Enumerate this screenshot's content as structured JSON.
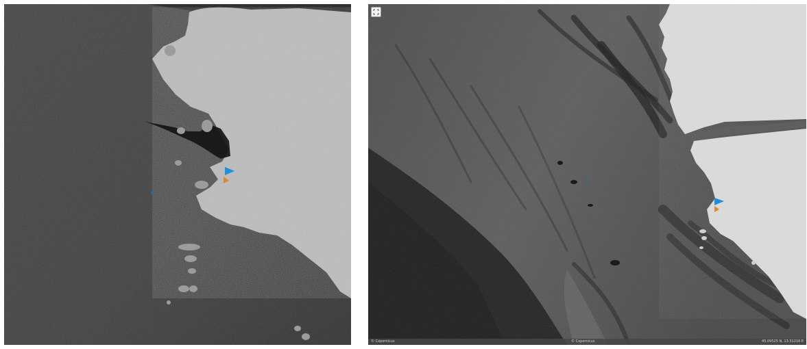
{
  "panels": {
    "left": {
      "kind": "sar-image"
    },
    "right": {
      "kind": "sar-image-viewer",
      "fullscreen_icon": "expand-arrows-icon",
      "status_bar": {
        "left_text": "© Copernicus",
        "middle_text": "© Copernicus",
        "right_text": "45.09525 N, 13.31218 E"
      }
    }
  },
  "colors": {
    "sea": "#3a3a3a",
    "land": "#c9c9c9",
    "slick": "#161616",
    "marker_blue": "#1f8fd6",
    "marker_orange": "#d98a2b"
  }
}
